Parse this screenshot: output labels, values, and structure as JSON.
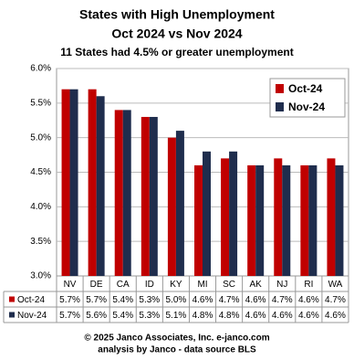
{
  "chart_data": {
    "type": "bar",
    "title": "States with High Unemployment",
    "subtitle": "Oct 2024 vs Nov 2024",
    "note": "11 States had 4.5% or greater unemployment",
    "footer": [
      "© 2025 Janco Associates, Inc. e-janco.com",
      "analysis by Janco - data source BLS"
    ],
    "categories": [
      "NV",
      "DE",
      "CA",
      "ID",
      "KY",
      "MI",
      "SC",
      "AK",
      "NJ",
      "RI",
      "WA"
    ],
    "series": [
      {
        "name": "Oct-24",
        "color": "#c00000",
        "values": [
          5.7,
          5.7,
          5.4,
          5.3,
          5.0,
          4.6,
          4.7,
          4.6,
          4.7,
          4.6,
          4.7
        ],
        "value_labels": [
          "5.7%",
          "5.7%",
          "5.4%",
          "5.3%",
          "5.0%",
          "4.6%",
          "4.7%",
          "4.6%",
          "4.7%",
          "4.6%",
          "4.7%"
        ]
      },
      {
        "name": "Nov-24",
        "color": "#1f2d4d",
        "values": [
          5.7,
          5.6,
          5.4,
          5.3,
          5.1,
          4.8,
          4.8,
          4.6,
          4.6,
          4.6,
          4.6
        ],
        "value_labels": [
          "5.7%",
          "5.6%",
          "5.4%",
          "5.3%",
          "5.1%",
          "4.8%",
          "4.8%",
          "4.6%",
          "4.6%",
          "4.6%",
          "4.6%"
        ]
      }
    ],
    "ylim": [
      3.0,
      6.0
    ],
    "yticks": [
      {
        "value": 3.0,
        "label": "3.0%"
      },
      {
        "value": 3.5,
        "label": "3.5%"
      },
      {
        "value": 4.0,
        "label": "4.0%"
      },
      {
        "value": 4.5,
        "label": "4.5%"
      },
      {
        "value": 5.0,
        "label": "5.0%"
      },
      {
        "value": 5.5,
        "label": "5.5%"
      },
      {
        "value": 6.0,
        "label": "6.0%"
      }
    ],
    "grid": true,
    "legend": "top-right"
  }
}
